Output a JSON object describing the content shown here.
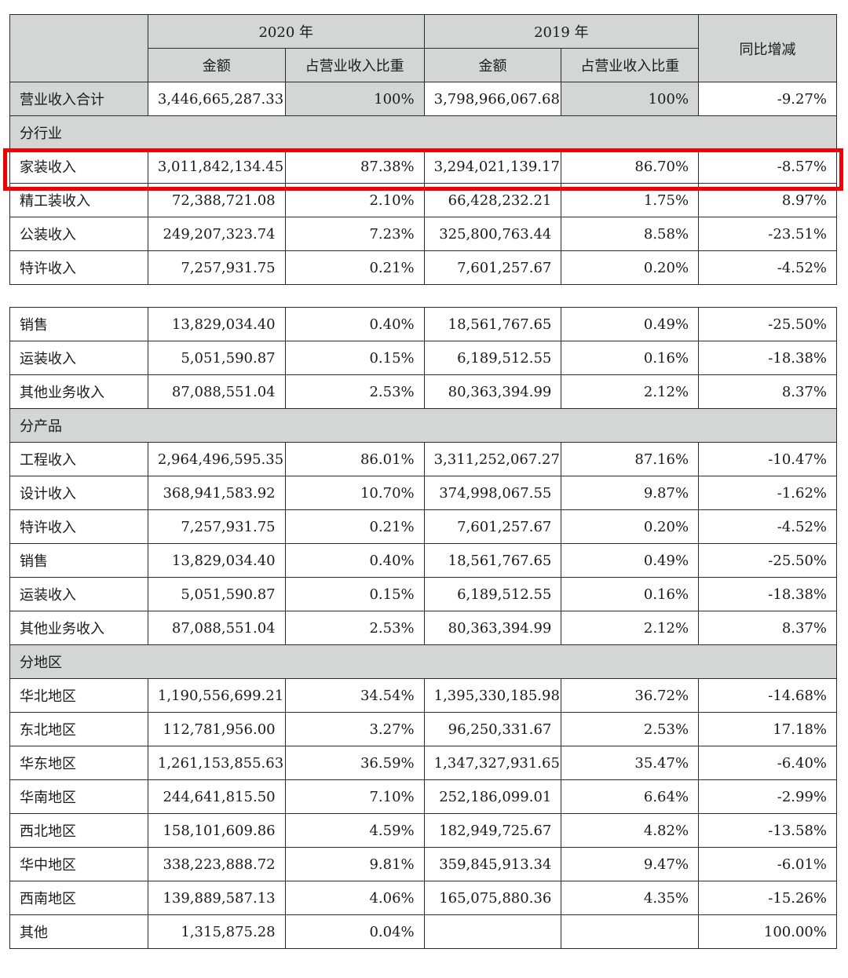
{
  "header": {
    "year_2020": "2020 年",
    "year_2019": "2019 年",
    "amount": "金额",
    "share": "占营业收入比重",
    "yoy": "同比增减"
  },
  "total": {
    "label": "营业收入合计",
    "amt2020": "3,446,665,287.33",
    "pct2020": "100%",
    "amt2019": "3,798,966,067.68",
    "pct2019": "100%",
    "yoy": "-9.27%"
  },
  "highlight_color": "#f00000",
  "sections": {
    "industry": {
      "title": "分行业",
      "rows": [
        {
          "label": "家装收入",
          "amt2020": "3,011,842,134.45",
          "pct2020": "87.38%",
          "amt2019": "3,294,021,139.17",
          "pct2019": "86.70%",
          "yoy": "-8.57%"
        },
        {
          "label": "精工装收入",
          "amt2020": "72,388,721.08",
          "pct2020": "2.10%",
          "amt2019": "66,428,232.21",
          "pct2019": "1.75%",
          "yoy": "8.97%"
        },
        {
          "label": "公装收入",
          "amt2020": "249,207,323.74",
          "pct2020": "7.23%",
          "amt2019": "325,800,763.44",
          "pct2019": "8.58%",
          "yoy": "-23.51%"
        },
        {
          "label": "特许收入",
          "amt2020": "7,257,931.75",
          "pct2020": "0.21%",
          "amt2019": "7,601,257.67",
          "pct2019": "0.20%",
          "yoy": "-4.52%"
        },
        {
          "label": "销售",
          "amt2020": "13,829,034.40",
          "pct2020": "0.40%",
          "amt2019": "18,561,767.65",
          "pct2019": "0.49%",
          "yoy": "-25.50%"
        },
        {
          "label": "运装收入",
          "amt2020": "5,051,590.87",
          "pct2020": "0.15%",
          "amt2019": "6,189,512.55",
          "pct2019": "0.16%",
          "yoy": "-18.38%"
        },
        {
          "label": "其他业务收入",
          "amt2020": "87,088,551.04",
          "pct2020": "2.53%",
          "amt2019": "80,363,394.99",
          "pct2019": "2.12%",
          "yoy": "8.37%"
        }
      ]
    },
    "product": {
      "title": "分产品",
      "rows": [
        {
          "label": "工程收入",
          "amt2020": "2,964,496,595.35",
          "pct2020": "86.01%",
          "amt2019": "3,311,252,067.27",
          "pct2019": "87.16%",
          "yoy": "-10.47%"
        },
        {
          "label": "设计收入",
          "amt2020": "368,941,583.92",
          "pct2020": "10.70%",
          "amt2019": "374,998,067.55",
          "pct2019": "9.87%",
          "yoy": "-1.62%"
        },
        {
          "label": "特许收入",
          "amt2020": "7,257,931.75",
          "pct2020": "0.21%",
          "amt2019": "7,601,257.67",
          "pct2019": "0.20%",
          "yoy": "-4.52%"
        },
        {
          "label": "销售",
          "amt2020": "13,829,034.40",
          "pct2020": "0.40%",
          "amt2019": "18,561,767.65",
          "pct2019": "0.49%",
          "yoy": "-25.50%"
        },
        {
          "label": "运装收入",
          "amt2020": "5,051,590.87",
          "pct2020": "0.15%",
          "amt2019": "6,189,512.55",
          "pct2019": "0.16%",
          "yoy": "-18.38%"
        },
        {
          "label": "其他业务收入",
          "amt2020": "87,088,551.04",
          "pct2020": "2.53%",
          "amt2019": "80,363,394.99",
          "pct2019": "2.12%",
          "yoy": "8.37%"
        }
      ]
    },
    "region": {
      "title": "分地区",
      "rows": [
        {
          "label": "华北地区",
          "amt2020": "1,190,556,699.21",
          "pct2020": "34.54%",
          "amt2019": "1,395,330,185.98",
          "pct2019": "36.72%",
          "yoy": "-14.68%"
        },
        {
          "label": "东北地区",
          "amt2020": "112,781,956.00",
          "pct2020": "3.27%",
          "amt2019": "96,250,331.67",
          "pct2019": "2.53%",
          "yoy": "17.18%"
        },
        {
          "label": "华东地区",
          "amt2020": "1,261,153,855.63",
          "pct2020": "36.59%",
          "amt2019": "1,347,327,931.65",
          "pct2019": "35.47%",
          "yoy": "-6.40%"
        },
        {
          "label": "华南地区",
          "amt2020": "244,641,815.50",
          "pct2020": "7.10%",
          "amt2019": "252,186,099.01",
          "pct2019": "6.64%",
          "yoy": "-2.99%"
        },
        {
          "label": "西北地区",
          "amt2020": "158,101,609.86",
          "pct2020": "4.59%",
          "amt2019": "182,949,725.67",
          "pct2019": "4.82%",
          "yoy": "-13.58%"
        },
        {
          "label": "华中地区",
          "amt2020": "338,223,888.72",
          "pct2020": "9.81%",
          "amt2019": "359,845,913.34",
          "pct2019": "9.47%",
          "yoy": "-6.01%"
        },
        {
          "label": "西南地区",
          "amt2020": "139,889,587.13",
          "pct2020": "4.06%",
          "amt2019": "165,075,880.36",
          "pct2019": "4.35%",
          "yoy": "-15.26%"
        },
        {
          "label": "其他",
          "amt2020": "1,315,875.28",
          "pct2020": "0.04%",
          "amt2019": "",
          "pct2019": "",
          "yoy": "100.00%"
        }
      ]
    }
  }
}
